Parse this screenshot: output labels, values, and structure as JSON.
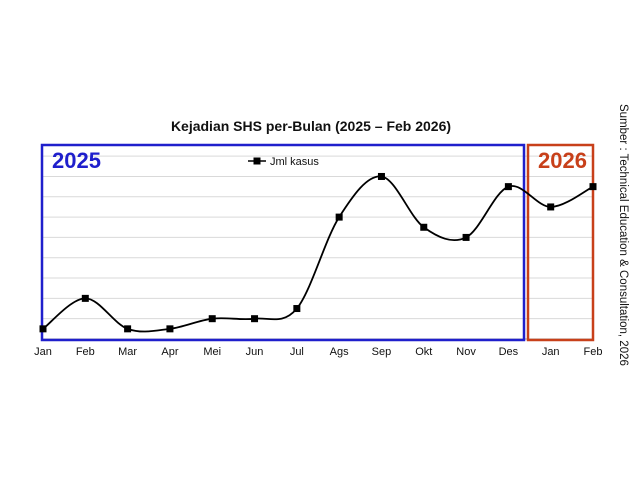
{
  "chart_data": {
    "type": "line",
    "title": "Kejadian SHS per-Bulan (2025 – Feb 2026)",
    "categories": [
      "Jan",
      "Feb",
      "Mar",
      "Apr",
      "Mei",
      "Jun",
      "Jul",
      "Ags",
      "Sep",
      "Okt",
      "Nov",
      "Des",
      "Jan",
      "Feb"
    ],
    "series": [
      {
        "name": "Jml kasus",
        "values": [
          1,
          4,
          1,
          1,
          2,
          2,
          3,
          12,
          16,
          11,
          10,
          15,
          13,
          15
        ]
      }
    ],
    "ylim": [
      0,
      19
    ],
    "grid": true,
    "legend": "top-center",
    "series_color": "#000000"
  },
  "year_groups": [
    {
      "label": "2025",
      "color": "#1f1fcc",
      "from": 0,
      "to": 11
    },
    {
      "label": "2026",
      "color": "#c8401a",
      "from": 12,
      "to": 13
    }
  ],
  "source_note": "Sumber : Technical Education & Consultation, 2026"
}
